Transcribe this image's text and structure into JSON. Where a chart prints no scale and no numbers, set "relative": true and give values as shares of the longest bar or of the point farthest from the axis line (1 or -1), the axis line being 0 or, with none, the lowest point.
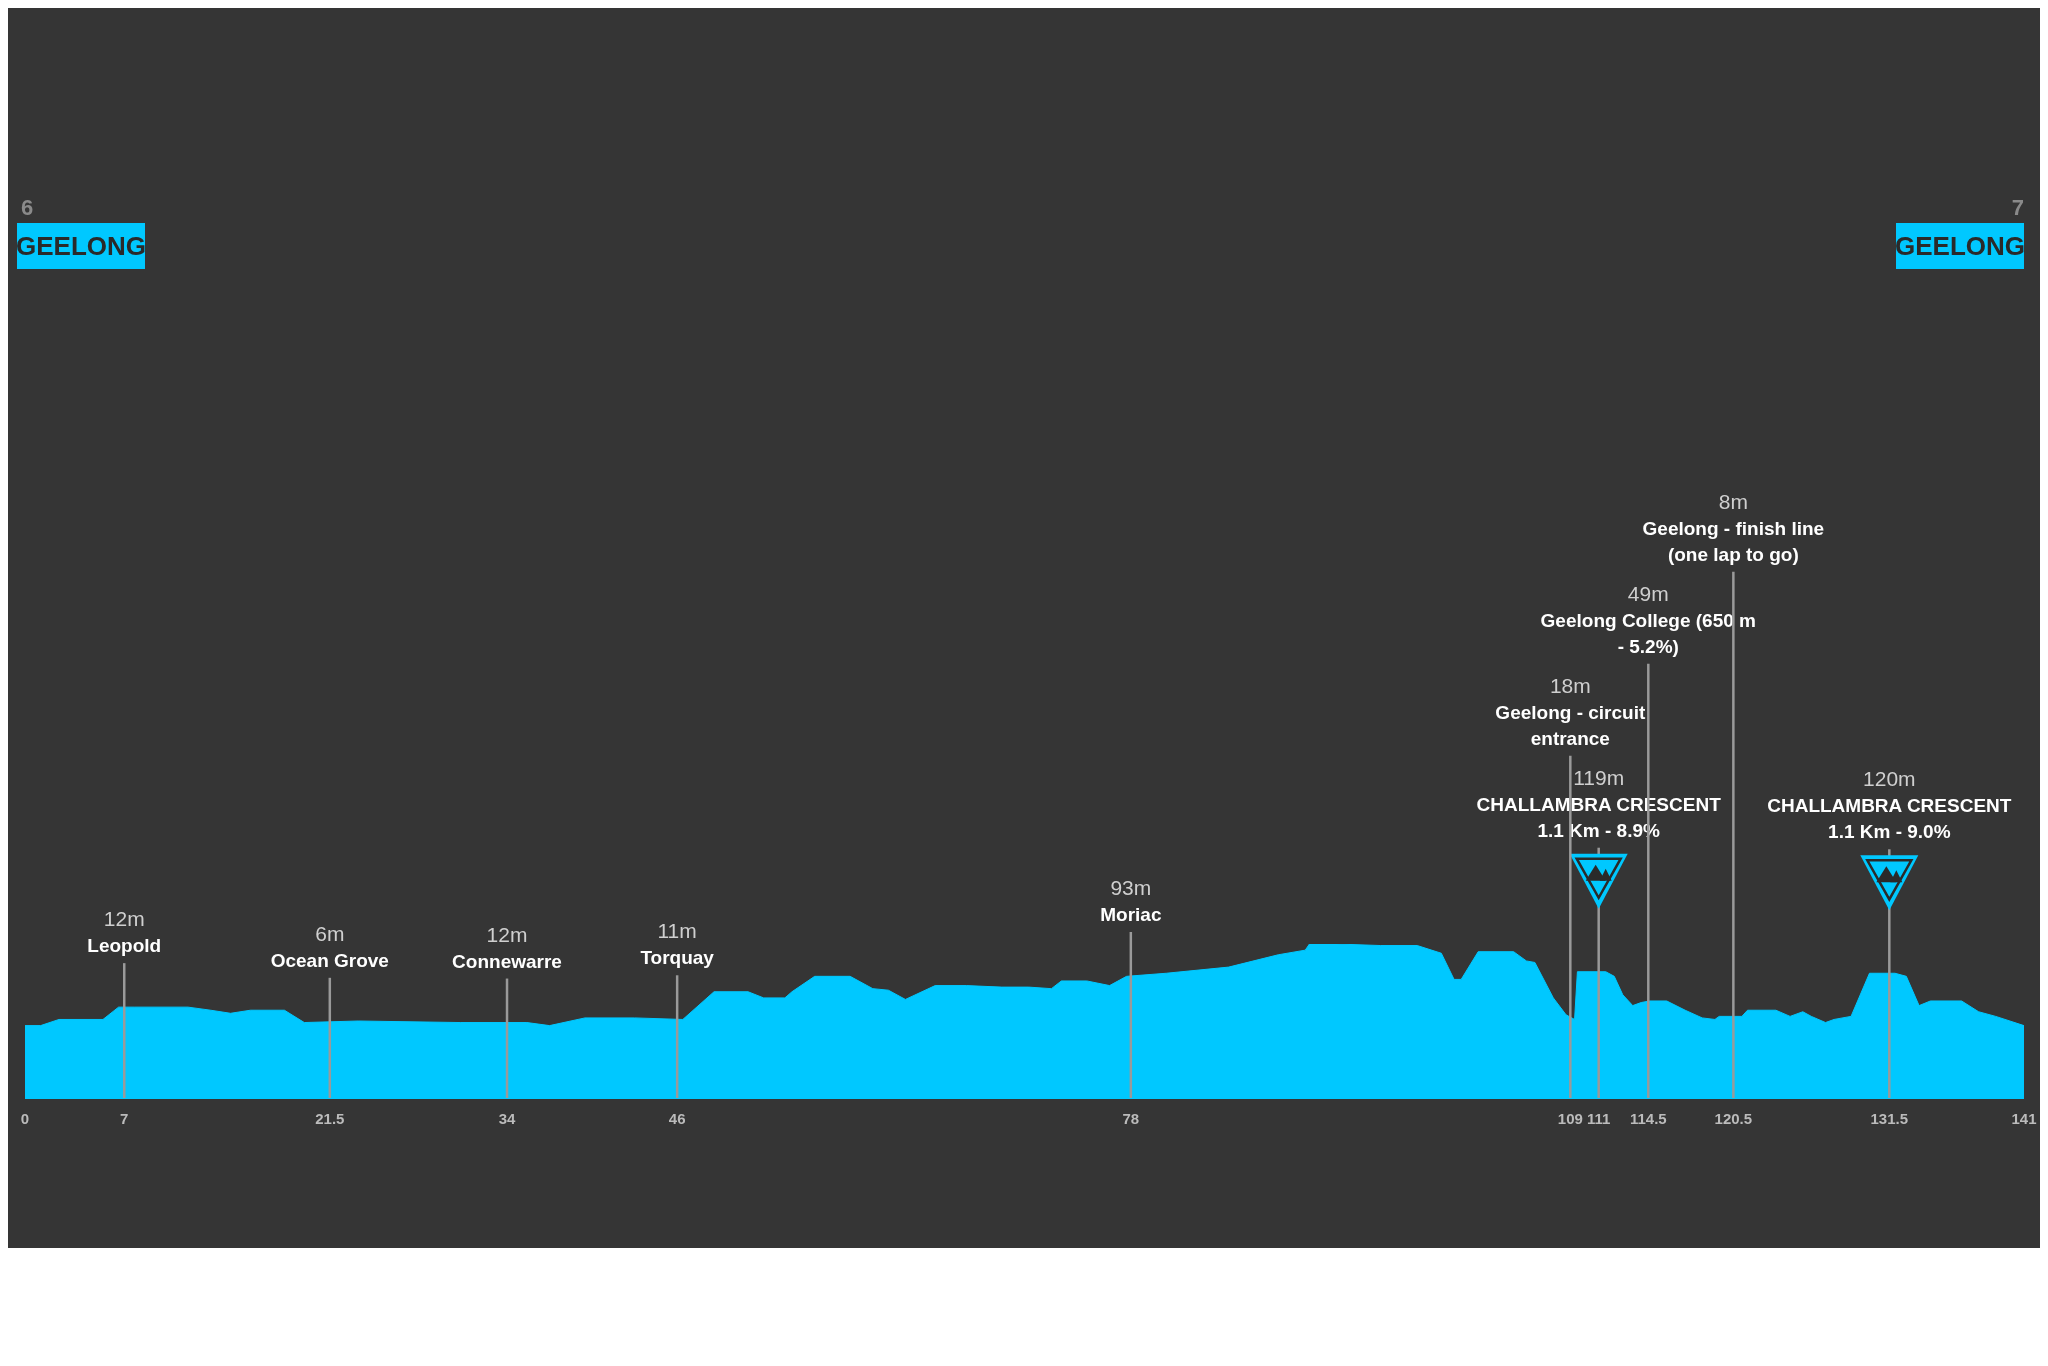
{
  "chart_data": {
    "type": "area",
    "relative": true,
    "x": [
      0,
      1.1,
      2.4,
      5.5,
      6.6,
      7.7,
      11.5,
      13.1,
      14.5,
      15.9,
      18.3,
      19.7,
      23.5,
      30.7,
      31.6,
      35.4,
      37,
      39.5,
      43,
      46.4,
      48.6,
      51,
      52.1,
      53.6,
      54.1,
      55.7,
      58.2,
      59.8,
      60.9,
      62.1,
      64.2,
      66.4,
      68.9,
      70.8,
      72.4,
      73.1,
      74.9,
      76.5,
      77.7,
      80.5,
      84.9,
      88.4,
      90.3,
      90.6,
      92.5,
      95.6,
      98.2,
      99.9,
      100.8,
      101.3,
      102.5,
      105,
      105.9,
      106.5,
      107.8,
      108.7,
      109.3,
      109.5,
      111.5,
      112.1,
      112.7,
      113.4,
      114,
      114.6,
      115.8,
      117.1,
      118.3,
      119.2,
      119.5,
      121.1,
      121.5,
      123.5,
      124.5,
      125.4,
      126,
      127,
      127.6,
      128.8,
      130.1,
      131.9,
      132.7,
      133.6,
      134.4,
      136.6,
      137.8,
      139,
      141
    ],
    "series": [
      {
        "color": "#00c8ff",
        "values": [
          0.47,
          0.47,
          0.51,
          0.51,
          0.59,
          0.59,
          0.59,
          0.57,
          0.55,
          0.57,
          0.57,
          0.49,
          0.5,
          0.49,
          0.49,
          0.49,
          0.47,
          0.52,
          0.52,
          0.51,
          0.69,
          0.69,
          0.65,
          0.65,
          0.69,
          0.79,
          0.79,
          0.71,
          0.7,
          0.64,
          0.73,
          0.73,
          0.72,
          0.72,
          0.71,
          0.76,
          0.76,
          0.73,
          0.79,
          0.81,
          0.85,
          0.93,
          0.96,
          1,
          1,
          0.99,
          0.99,
          0.94,
          0.77,
          0.77,
          0.95,
          0.95,
          0.89,
          0.88,
          0.65,
          0.54,
          0.51,
          0.82,
          0.82,
          0.79,
          0.67,
          0.6,
          0.62,
          0.63,
          0.63,
          0.57,
          0.52,
          0.51,
          0.53,
          0.53,
          0.57,
          0.57,
          0.53,
          0.56,
          0.53,
          0.49,
          0.51,
          0.53,
          0.81,
          0.81,
          0.79,
          0.6,
          0.63,
          0.63,
          0.56,
          0.53,
          0.47
        ]
      }
    ],
    "xlim": [
      0,
      141
    ],
    "xticks": [
      0,
      7,
      21.5,
      34,
      46,
      78,
      109,
      111,
      114.5,
      120.5,
      131.5,
      141
    ],
    "annotations": [
      "6\nGEELONG",
      "7\nGEELONG"
    ],
    "ref_lines": [
      {
        "axis": "x",
        "value": 7,
        "label": "12m\nLeopold"
      },
      {
        "axis": "x",
        "value": 21.5,
        "label": "6m\nOcean Grove"
      },
      {
        "axis": "x",
        "value": 34,
        "label": "12m\nConnewarre"
      },
      {
        "axis": "x",
        "value": 46,
        "label": "11m\nTorquay"
      },
      {
        "axis": "x",
        "value": 78,
        "label": "93m\nMoriac"
      },
      {
        "axis": "x",
        "value": 111,
        "label": "119m\nCHALLAMBRA CRESCENT 1.1 Km - 8.9%"
      },
      {
        "axis": "x",
        "value": 109,
        "label": "18m\nGeelong - circuit entrance"
      },
      {
        "axis": "x",
        "value": 114.5,
        "label": "49m\nGeelong College (650 m - 5.2%)"
      },
      {
        "axis": "x",
        "value": 120.5,
        "label": "8m\nGeelong - finish line (one lap to go)"
      },
      {
        "axis": "x",
        "value": 131.5,
        "label": "120m\nCHALLAMBRA CRESCENT 1.1 Km - 9.0%"
      }
    ]
  }
}
